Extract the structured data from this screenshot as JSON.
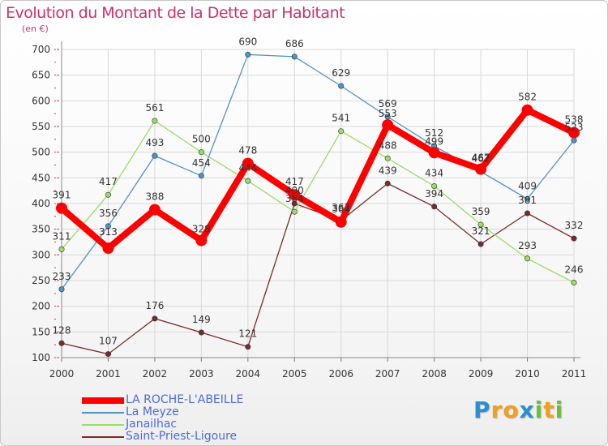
{
  "chart_data": {
    "type": "line",
    "title": "Evolution du Montant de la Dette par Habitant",
    "unit_label": "(en €)",
    "xlabel": "",
    "ylabel": "",
    "categories": [
      "2000",
      "2001",
      "2002",
      "2003",
      "2004",
      "2005",
      "2006",
      "2007",
      "2008",
      "2009",
      "2010",
      "2011"
    ],
    "ylim": [
      100,
      700
    ],
    "yticks": [
      100,
      150,
      200,
      250,
      300,
      350,
      400,
      450,
      500,
      550,
      600,
      650,
      700
    ],
    "grid": true,
    "legend_position": "bottom-left",
    "series": [
      {
        "name": "LA ROCHE-L'ABEILLE",
        "color": "#ff0000",
        "emphasis": true,
        "values": [
          391,
          313,
          388,
          328,
          478,
          417,
          364,
          553,
          499,
          467,
          582,
          538
        ]
      },
      {
        "name": "La Meyze",
        "color": "#4d94cc",
        "emphasis": false,
        "values": [
          233,
          356,
          493,
          454,
          690,
          686,
          629,
          569,
          512,
          462,
          409,
          523
        ]
      },
      {
        "name": "Janailhac",
        "color": "#99dd66",
        "emphasis": false,
        "values": [
          311,
          417,
          561,
          500,
          444,
          384,
          541,
          488,
          434,
          359,
          293,
          246
        ]
      },
      {
        "name": "Saint-Priest-Ligoure",
        "color": "#7a2a2a",
        "emphasis": false,
        "values": [
          128,
          107,
          176,
          149,
          121,
          400,
          367,
          439,
          394,
          321,
          381,
          332
        ]
      }
    ]
  },
  "branding": {
    "logo_letters": [
      "P",
      "r",
      "o",
      "x",
      "i",
      "t",
      "i"
    ],
    "logo_colors": [
      "#2a8fd0",
      "#f0a020",
      "#f0a020",
      "#2a8fd0",
      "#6cbf3a",
      "#f0a020",
      "#6cbf3a"
    ]
  }
}
